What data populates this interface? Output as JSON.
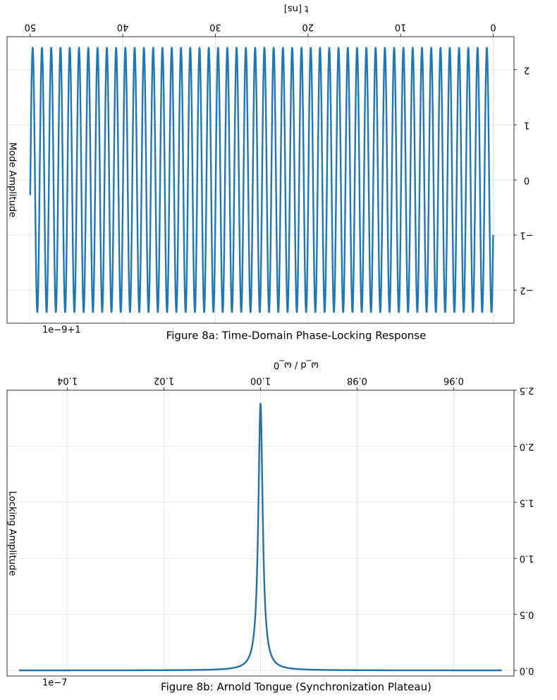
{
  "chart_data": [
    {
      "type": "line",
      "title": "Figure 8a: Time-Domain Phase-Locking Response",
      "xlabel": "t [ns]",
      "ylabel": "Mode Amplitude",
      "offset_text": "1e−9+1",
      "xlim": [
        -2.25,
        52.5
      ],
      "ylim": [
        2.6,
        -2.6
      ],
      "xticks": [
        0,
        10,
        20,
        30,
        40,
        50
      ],
      "xtick_labels": [
        "0",
        "10",
        "20",
        "30",
        "40",
        "50"
      ],
      "yticks": [
        -2,
        -1,
        0,
        1,
        2
      ],
      "ytick_labels": [
        "−2",
        "−1",
        "0",
        "1",
        "2"
      ],
      "grid": true,
      "mirrored": true,
      "series": [
        {
          "color": "#1f77b4",
          "function": "amplitude * cos(2*pi*frequency*t + phase)",
          "amplitude": 2.4,
          "frequency": 0.999,
          "phase": 2.0,
          "x_range": [
            0,
            50
          ]
        }
      ]
    },
    {
      "type": "line",
      "title": "Figure 8b: Arnold Tongue (Synchronization Plateau)",
      "xlabel": "ω_d / ω_0",
      "ylabel": "Locking Amplitude",
      "offset_text": "1e−7",
      "xlim": [
        0.9475,
        1.0525
      ],
      "ylim": [
        2.5,
        -0.05
      ],
      "xticks": [
        0.96,
        0.98,
        1.0,
        1.02,
        1.04
      ],
      "xtick_labels": [
        "0.96",
        "0.98",
        "1.00",
        "1.02",
        "1.04"
      ],
      "yticks": [
        0.0,
        0.5,
        1.0,
        1.5,
        2.0,
        2.5
      ],
      "ytick_labels": [
        "0.0",
        "0.5",
        "1.0",
        "1.5",
        "2.0",
        "2.5"
      ],
      "grid": true,
      "mirrored": true,
      "series": [
        {
          "color": "#2471a3",
          "function": "peak * gamma^2 / ((x - center)^2 + gamma^2)",
          "peak": 2.38,
          "center": 1.0,
          "gamma": 0.00055,
          "x_range": [
            0.95,
            1.05
          ]
        }
      ]
    }
  ]
}
